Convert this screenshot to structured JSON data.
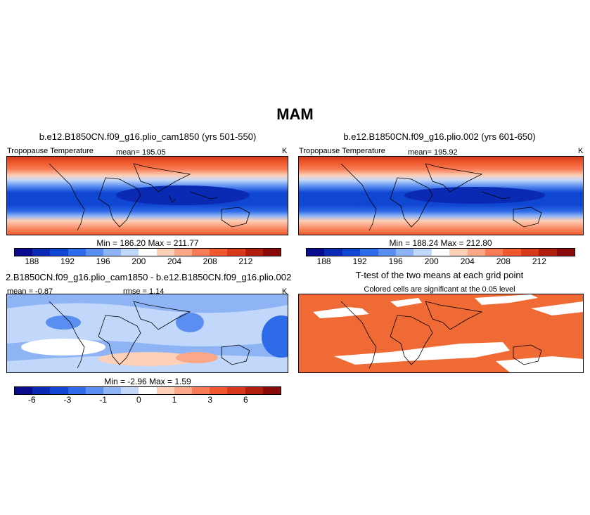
{
  "title": "MAM",
  "panels": {
    "p1": {
      "title": "b.e12.B1850CN.f09_g16.plio_cam1850 (yrs 501-550)",
      "left_label": "Tropopause Temperature",
      "mean_label": "mean= 195.05",
      "unit": "K",
      "stats": "Min =  186.20  Max =  211.77",
      "cbar_ticks": [
        "188",
        "192",
        "196",
        "200",
        "204",
        "208",
        "212"
      ]
    },
    "p2": {
      "title": "b.e12.B1850CN.f09_g16.plio.002 (yrs 601-650)",
      "left_label": "Tropopause Temperature",
      "mean_label": "mean= 195.92",
      "unit": "K",
      "stats": "Min =  188.24  Max =  212.80",
      "cbar_ticks": [
        "188",
        "192",
        "196",
        "200",
        "204",
        "208",
        "212"
      ]
    },
    "p3": {
      "title": "2.B1850CN.f09_g16.plio_cam1850 - b.e12.B1850CN.f09_g16.plio.002",
      "mean_label": "mean =  -0.87",
      "rmse_label": "rmse =   1.14",
      "unit": "K",
      "stats": "Min =  -2.96  Max =  1.59",
      "cbar_ticks": [
        "-6",
        "-3",
        "-1",
        "0",
        "1",
        "3",
        "6"
      ]
    },
    "p4": {
      "title": "T-test of the two means at each grid point",
      "subtitle": "Colored cells are significant at the 0.05 level"
    }
  },
  "colors": {
    "abs_scale": [
      "#0a0a8c",
      "#0a2ab4",
      "#0f46d2",
      "#2e6be8",
      "#5a8ef0",
      "#8fb4f6",
      "#c2d8fa",
      "#ffffff",
      "#fdd0b8",
      "#fba888",
      "#f77c55",
      "#ee5a2e",
      "#d63a1a",
      "#b01e0e",
      "#8a0a0a"
    ],
    "diff_scale": [
      "#0a0a8c",
      "#0a2ab4",
      "#0f46d2",
      "#2e6be8",
      "#5a8ef0",
      "#8fb4f6",
      "#c2d8fa",
      "#ffffff",
      "#fdd0b8",
      "#fba888",
      "#f77c55",
      "#ee5a2e",
      "#d63a1a",
      "#b01e0e",
      "#8a0a0a"
    ],
    "significant": "#f06a35"
  }
}
